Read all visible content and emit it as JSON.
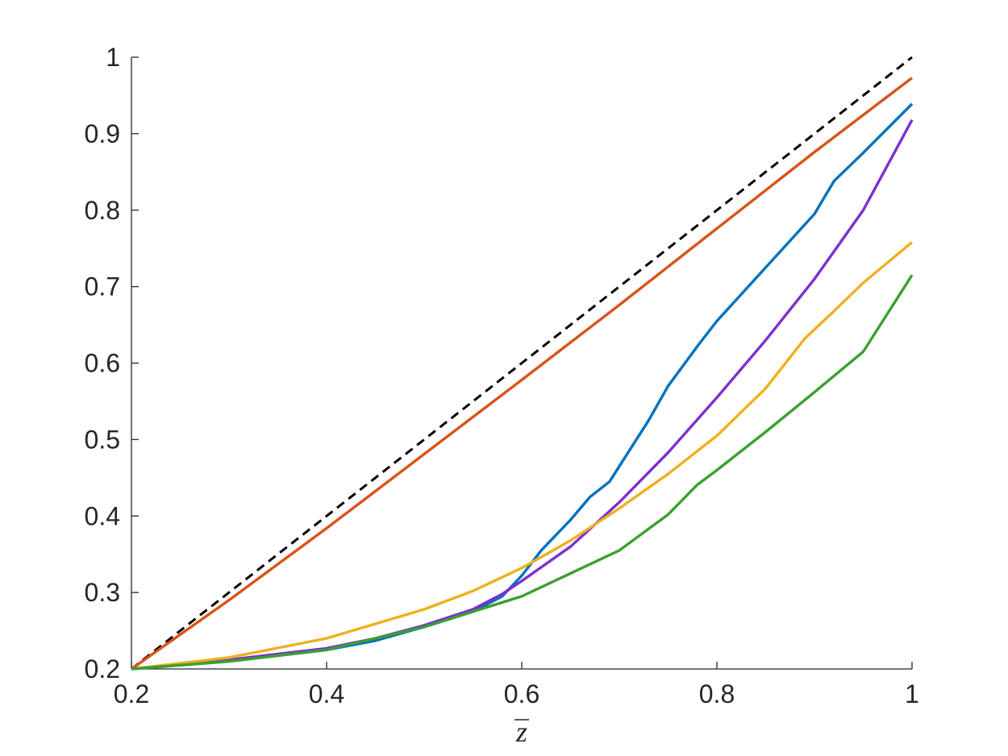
{
  "chart_data": {
    "type": "line",
    "title": "",
    "xlabel": "z",
    "xlabel_overline": true,
    "ylabel": "",
    "xlim": [
      0.2,
      1.0
    ],
    "ylim": [
      0.2,
      1.0
    ],
    "xticks": [
      0.2,
      0.4,
      0.6,
      0.8,
      1.0
    ],
    "xtick_labels": [
      "0.2",
      "0.4",
      "0.6",
      "0.8",
      "1"
    ],
    "yticks": [
      0.2,
      0.3,
      0.4,
      0.5,
      0.6,
      0.7,
      0.8,
      0.9,
      1.0
    ],
    "ytick_labels": [
      "0.2",
      "0.3",
      "0.4",
      "0.5",
      "0.6",
      "0.7",
      "0.8",
      "0.9",
      "1"
    ],
    "grid": false,
    "legend": "none",
    "axis_color": "#262626",
    "series": [
      {
        "color": "#000000",
        "style": "dashed",
        "x": [
          0.2,
          1.0
        ],
        "y": [
          0.2,
          1.0
        ]
      },
      {
        "color": "#D95319",
        "style": "solid",
        "x": [
          0.2,
          0.3,
          0.4,
          0.5,
          0.6,
          0.7,
          0.8,
          0.9,
          1.0
        ],
        "y": [
          0.2,
          0.29,
          0.384,
          0.481,
          0.578,
          0.676,
          0.776,
          0.876,
          0.973
        ]
      },
      {
        "color": "#0072BD",
        "style": "solid",
        "x": [
          0.2,
          0.3,
          0.4,
          0.45,
          0.5,
          0.55,
          0.58,
          0.6,
          0.62,
          0.65,
          0.67,
          0.69,
          0.7,
          0.73,
          0.75,
          0.78,
          0.8,
          0.85,
          0.9,
          0.92,
          0.95,
          1.0
        ],
        "y": [
          0.2,
          0.21,
          0.225,
          0.237,
          0.255,
          0.275,
          0.295,
          0.322,
          0.355,
          0.395,
          0.425,
          0.445,
          0.465,
          0.525,
          0.57,
          0.622,
          0.655,
          0.725,
          0.795,
          0.838,
          0.875,
          0.939
        ]
      },
      {
        "color": "#7E2FCF",
        "style": "solid",
        "x": [
          0.2,
          0.3,
          0.4,
          0.45,
          0.5,
          0.55,
          0.58,
          0.6,
          0.65,
          0.7,
          0.75,
          0.8,
          0.85,
          0.9,
          0.95,
          1.0
        ],
        "y": [
          0.2,
          0.212,
          0.227,
          0.24,
          0.257,
          0.278,
          0.298,
          0.315,
          0.36,
          0.418,
          0.483,
          0.555,
          0.63,
          0.71,
          0.8,
          0.918
        ]
      },
      {
        "color": "#EDB120",
        "style": "solid",
        "x": [
          0.2,
          0.3,
          0.4,
          0.5,
          0.55,
          0.6,
          0.65,
          0.7,
          0.75,
          0.8,
          0.85,
          0.89,
          0.92,
          0.95,
          1.0
        ],
        "y": [
          0.2,
          0.215,
          0.24,
          0.278,
          0.302,
          0.332,
          0.368,
          0.41,
          0.455,
          0.505,
          0.567,
          0.632,
          0.668,
          0.705,
          0.758
        ]
      },
      {
        "color": "#3AA02E",
        "style": "solid",
        "x": [
          0.2,
          0.3,
          0.4,
          0.5,
          0.55,
          0.6,
          0.65,
          0.7,
          0.75,
          0.78,
          0.8,
          0.85,
          0.9,
          0.95,
          1.0
        ],
        "y": [
          0.2,
          0.21,
          0.225,
          0.255,
          0.275,
          0.295,
          0.325,
          0.355,
          0.402,
          0.441,
          0.46,
          0.51,
          0.562,
          0.615,
          0.715
        ]
      }
    ]
  }
}
